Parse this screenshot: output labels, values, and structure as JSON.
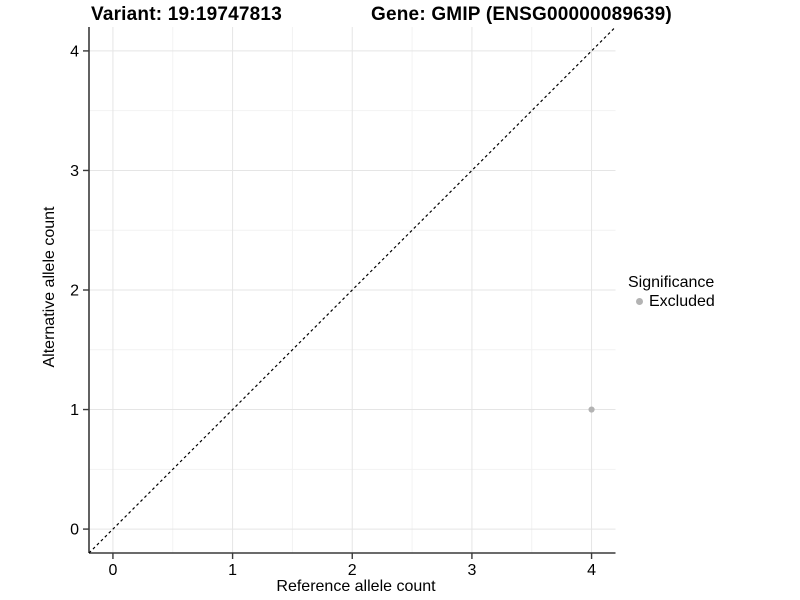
{
  "header": {
    "variant_title": "Variant: 19:19747813",
    "gene_title": "Gene: GMIP (ENSG00000089639)"
  },
  "chart_data": {
    "type": "scatter",
    "xlabel": "Reference allele count",
    "ylabel": "Alternative allele count",
    "xlim": [
      -0.2,
      4.2
    ],
    "ylim": [
      -0.2,
      4.2
    ],
    "xticks": [
      0,
      1,
      2,
      3,
      4
    ],
    "yticks": [
      0,
      1,
      2,
      3,
      4
    ],
    "minor_step": 0.5,
    "grid": "major+minor",
    "reference_line": {
      "from": [
        -0.2,
        -0.2
      ],
      "to": [
        4.2,
        4.2
      ],
      "style": "dashed",
      "color": "#000000"
    },
    "series": [
      {
        "name": "Excluded",
        "color": "#b3b3b3",
        "marker_radius": 3.1,
        "points": [
          [
            4,
            1
          ]
        ]
      }
    ],
    "legend": {
      "title": "Significance",
      "position": "right",
      "items": [
        {
          "label": "Excluded",
          "color": "#b3b3b3"
        }
      ]
    },
    "colors": {
      "background": "#ffffff",
      "axis_line": "#3a3a3a",
      "tick_mark": "#3a3a3a",
      "text": "#000000",
      "grid_major": "#e5e5e5",
      "grid_minor": "#f2f2f2"
    }
  }
}
